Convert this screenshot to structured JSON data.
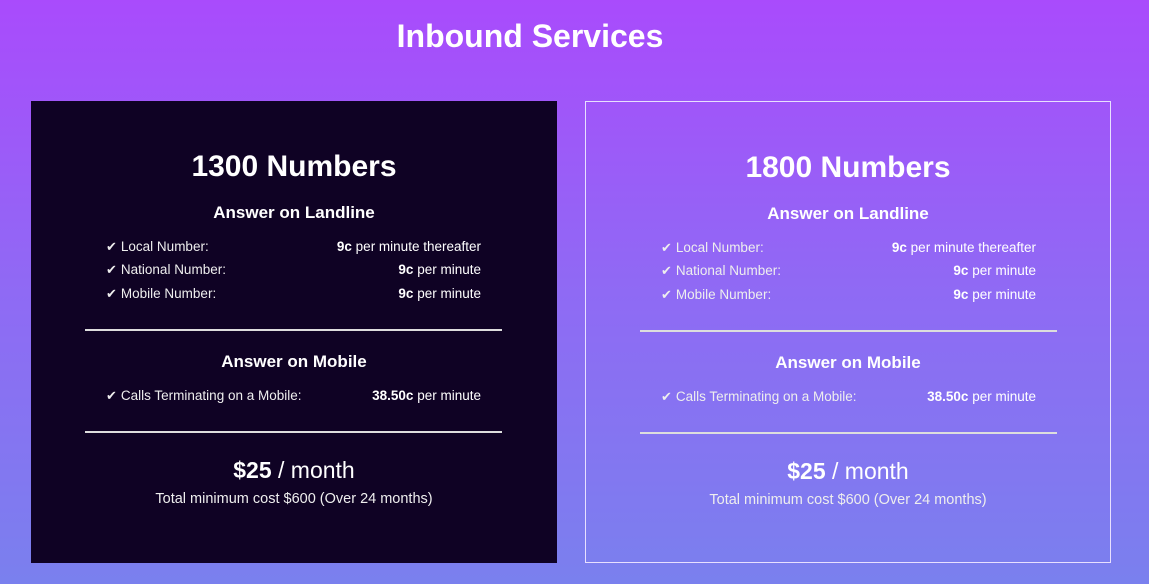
{
  "page_title": "Inbound Services",
  "cards": [
    {
      "title": "1300 Numbers",
      "landline_heading": "Answer on Landline",
      "landline_rows": [
        {
          "label": "Local Number:",
          "rate": "9c",
          "unit": "per minute thereafter"
        },
        {
          "label": "National Number:",
          "rate": "9c",
          "unit": "per minute"
        },
        {
          "label": "Mobile Number:",
          "rate": "9c",
          "unit": "per minute"
        }
      ],
      "mobile_heading": "Answer on Mobile",
      "mobile_rows": [
        {
          "label": "Calls Terminating on a Mobile:",
          "rate": "38.50c",
          "unit": "per minute"
        }
      ],
      "price": "$25",
      "price_period": "/ month",
      "total": "Total minimum cost $600 (Over 24 months)"
    },
    {
      "title": "1800 Numbers",
      "landline_heading": "Answer on Landline",
      "landline_rows": [
        {
          "label": "Local Number:",
          "rate": "9c",
          "unit": "per minute thereafter"
        },
        {
          "label": "National Number:",
          "rate": "9c",
          "unit": "per minute"
        },
        {
          "label": "Mobile Number:",
          "rate": "9c",
          "unit": "per minute"
        }
      ],
      "mobile_heading": "Answer on Mobile",
      "mobile_rows": [
        {
          "label": "Calls Terminating on a Mobile:",
          "rate": "38.50c",
          "unit": "per minute"
        }
      ],
      "price": "$25",
      "price_period": "/ month",
      "total": "Total minimum cost $600 (Over 24 months)"
    }
  ],
  "icons": {
    "check": "checkmark-icon"
  },
  "colors": {
    "dark_card": "#0f0224",
    "gradient_top": "#a94bfc",
    "gradient_bottom": "#7a80ee"
  }
}
